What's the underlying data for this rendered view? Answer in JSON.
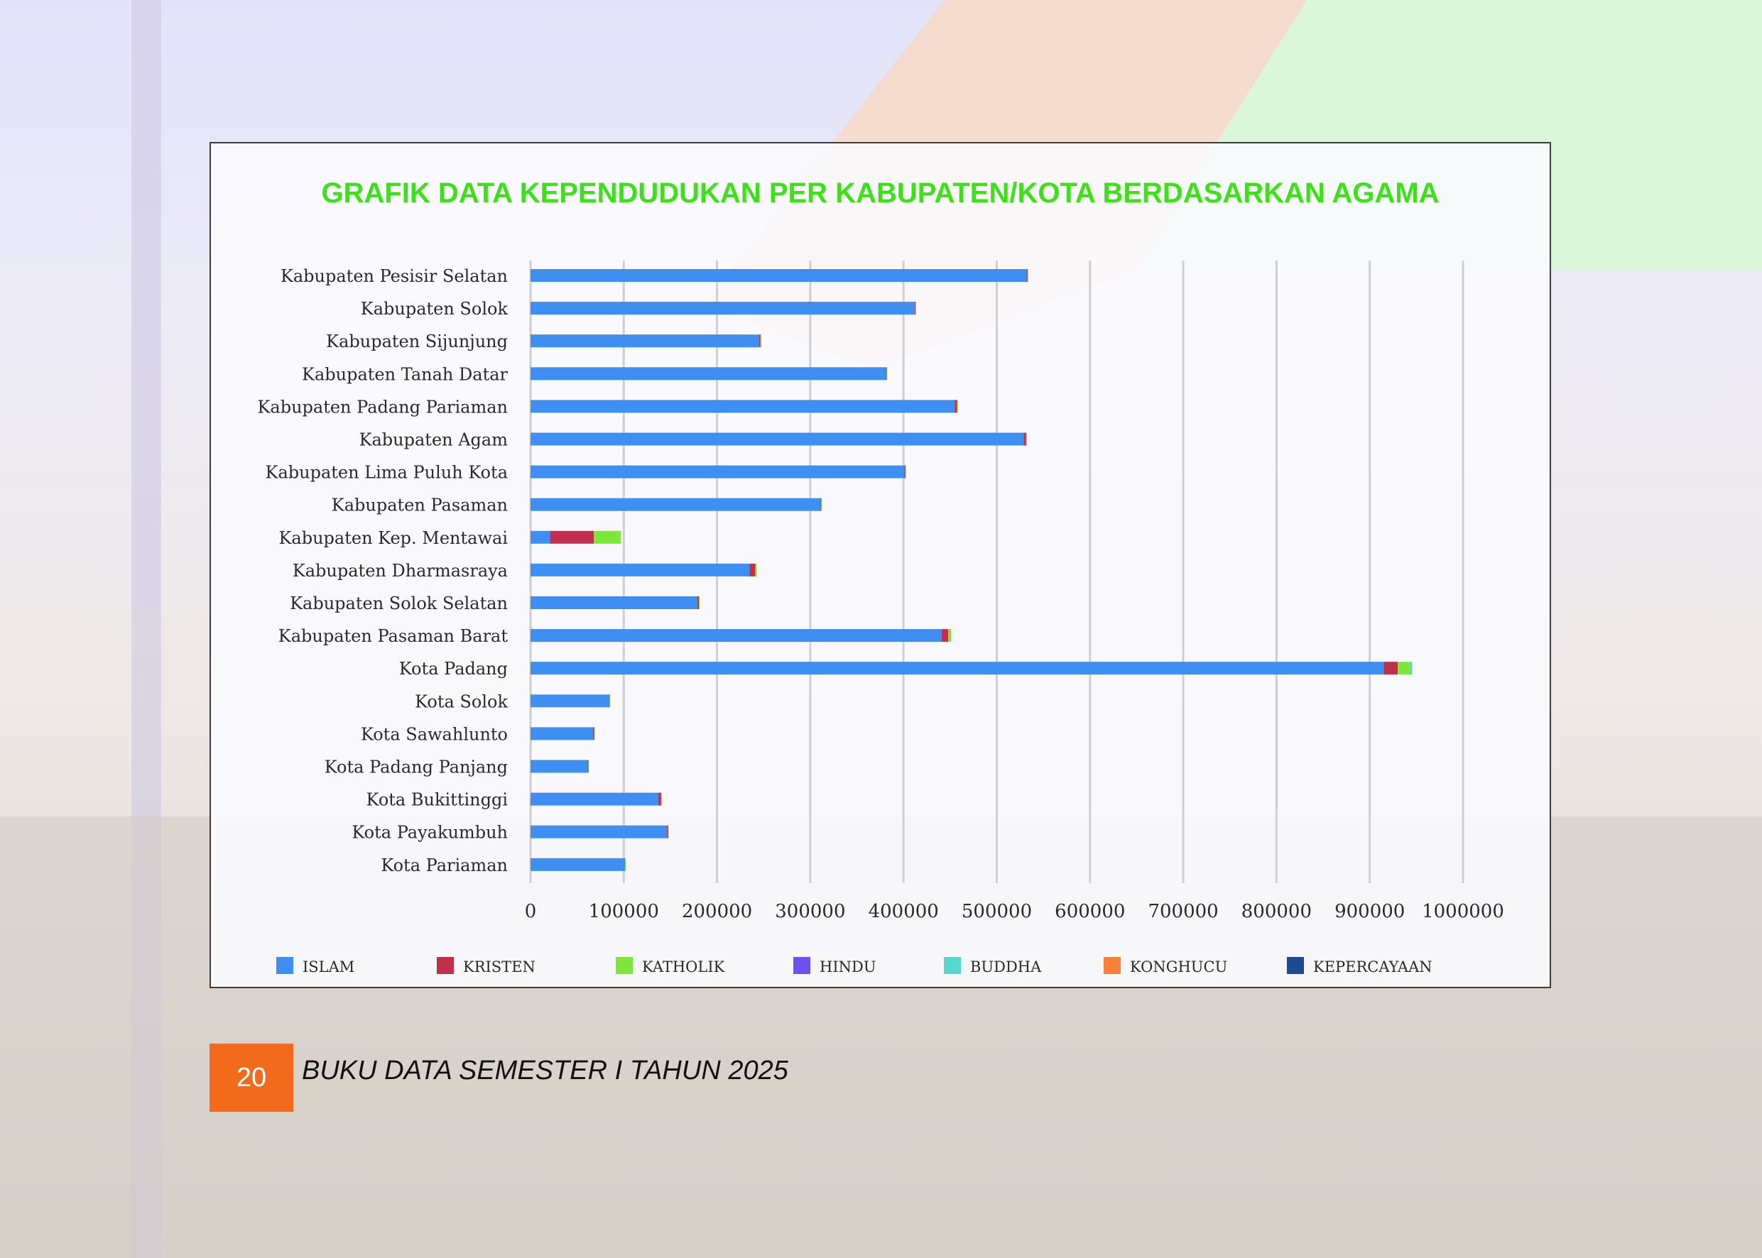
{
  "chart_data": {
    "type": "bar",
    "orientation": "horizontal",
    "stacked": true,
    "title": "GRAFIK DATA KEPENDUDUKAN PER KABUPATEN/KOTA BERDASARKAN AGAMA",
    "xlabel": "",
    "ylabel": "",
    "xlim": [
      0,
      1000000
    ],
    "x_ticks": [
      "0",
      "100000",
      "200000",
      "300000",
      "400000",
      "500000",
      "600000",
      "700000",
      "800000",
      "900000",
      "1000000"
    ],
    "grid": "vertical",
    "legend_position": "bottom",
    "categories": [
      "Kabupaten Pesisir Selatan",
      "Kabupaten Solok",
      "Kabupaten Sijunjung",
      "Kabupaten Tanah Datar",
      "Kabupaten Padang Pariaman",
      "Kabupaten Agam",
      "Kabupaten Lima Puluh Kota",
      "Kabupaten Pasaman",
      "Kabupaten Kep. Mentawai",
      "Kabupaten Dharmasraya",
      "Kabupaten Solok Selatan",
      "Kabupaten Pasaman Barat",
      "Kota Padang",
      "Kota Solok",
      "Kota Sawahlunto",
      "Kota Padang Panjang",
      "Kota Bukittinggi",
      "Kota Payakumbuh",
      "Kota Pariaman"
    ],
    "series": [
      {
        "name": "ISLAM",
        "color": "#3f8ef2",
        "values": [
          532000,
          412000,
          245000,
          381000,
          455000,
          529000,
          401000,
          311000,
          21000,
          235000,
          179000,
          441000,
          915000,
          84000,
          67000,
          61000,
          137000,
          146000,
          101000
        ]
      },
      {
        "name": "KRISTEN",
        "color": "#c02f4c",
        "values": [
          1000,
          700,
          1500,
          900,
          2500,
          2500,
          1000,
          800,
          47000,
          6000,
          1500,
          7000,
          15000,
          800,
          1300,
          1000,
          3000,
          1500,
          300
        ]
      },
      {
        "name": "KATHOLIK",
        "color": "#7ee63a",
        "values": [
          500,
          400,
          1200,
          500,
          800,
          800,
          500,
          500,
          29000,
          1500,
          800,
          3000,
          13000,
          500,
          800,
          500,
          1000,
          800,
          200
        ]
      },
      {
        "name": "HINDU",
        "color": "#6e4ff0",
        "values": [
          0,
          0,
          0,
          0,
          0,
          0,
          0,
          0,
          0,
          0,
          0,
          0,
          0,
          0,
          0,
          0,
          0,
          0,
          0
        ]
      },
      {
        "name": "BUDDHA",
        "color": "#56d7d0",
        "values": [
          0,
          0,
          0,
          0,
          0,
          0,
          0,
          0,
          0,
          0,
          0,
          0,
          2500,
          0,
          0,
          0,
          0,
          0,
          0
        ]
      },
      {
        "name": "KONGHUCU",
        "color": "#f5813a",
        "values": [
          0,
          0,
          0,
          0,
          0,
          0,
          0,
          0,
          0,
          0,
          0,
          0,
          0,
          0,
          0,
          0,
          0,
          0,
          0
        ]
      },
      {
        "name": "KEPERCAYAAN",
        "color": "#1e4b8f",
        "values": [
          0,
          0,
          0,
          0,
          0,
          0,
          0,
          0,
          0,
          0,
          0,
          0,
          0,
          0,
          0,
          0,
          0,
          0,
          0
        ]
      }
    ]
  },
  "footer": {
    "page_number": "20",
    "book_title": "BUKU DATA SEMESTER I TAHUN 2025"
  },
  "colors": {
    "title": "#3ee01a",
    "footer_box": "#f26a1b",
    "grid": "#cfcfcf"
  }
}
